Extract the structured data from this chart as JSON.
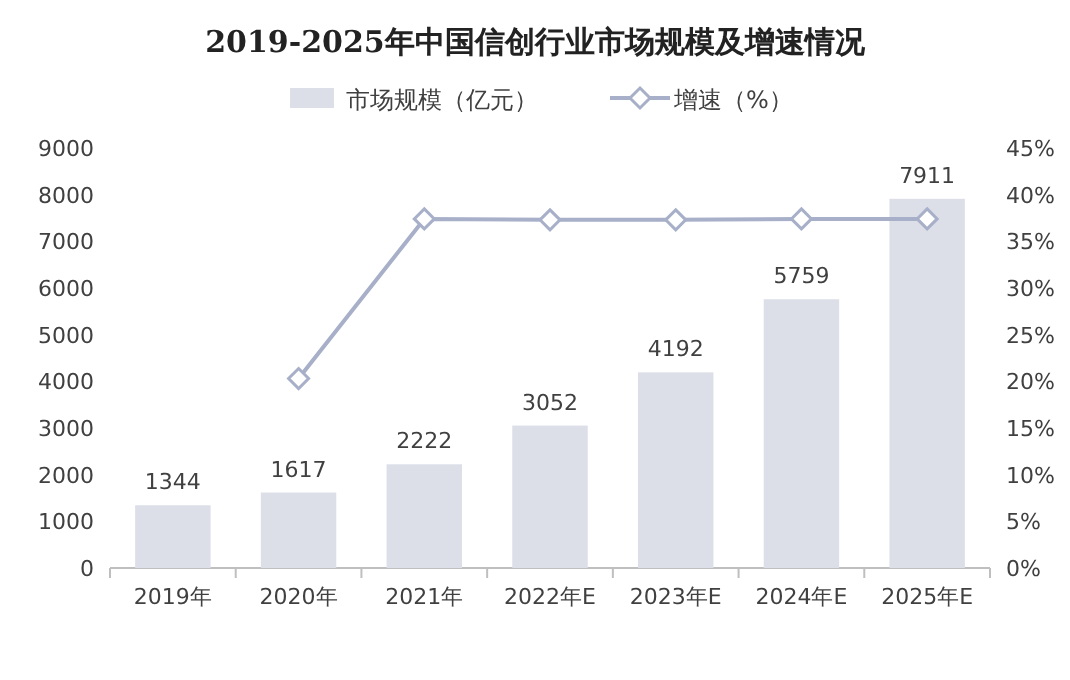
{
  "chart_data": {
    "type": "bar",
    "title": "2019-2025年中国信创行业市场规模及增速情况",
    "categories": [
      "2019年",
      "2020年",
      "2021年",
      "2022年E",
      "2023年E",
      "2024年E",
      "2025年E"
    ],
    "series": [
      {
        "name": "市场规模（亿元）",
        "color": "#dcdee8",
        "values": [
          1344,
          1617,
          2222,
          3052,
          4192,
          5759,
          7911
        ],
        "value_labels": [
          "1344",
          "1617",
          "2222",
          "3052",
          "4192",
          "5759",
          "7911"
        ]
      },
      {
        "name": "增速（%）",
        "type": "line",
        "axis": "y2",
        "color": "#a7b0c8",
        "marker": "diamond",
        "values": [
          null,
          20.3,
          37.4,
          37.3,
          37.3,
          37.4,
          37.4
        ]
      }
    ],
    "ylim": [
      0,
      9000
    ],
    "yticks": [
      0,
      1000,
      2000,
      3000,
      4000,
      5000,
      6000,
      7000,
      8000,
      9000
    ],
    "y2lim": [
      0,
      45
    ],
    "y2ticks": [
      {
        "value": 0,
        "label": "0%"
      },
      {
        "value": 5,
        "label": "5%"
      },
      {
        "value": 10,
        "label": "10%"
      },
      {
        "value": 15,
        "label": "15%"
      },
      {
        "value": 20,
        "label": "20%"
      },
      {
        "value": 25,
        "label": "25%"
      },
      {
        "value": 30,
        "label": "30%"
      },
      {
        "value": 35,
        "label": "35%"
      },
      {
        "value": 40,
        "label": "40%"
      },
      {
        "value": 45,
        "label": "45%"
      }
    ],
    "legend": "top"
  }
}
